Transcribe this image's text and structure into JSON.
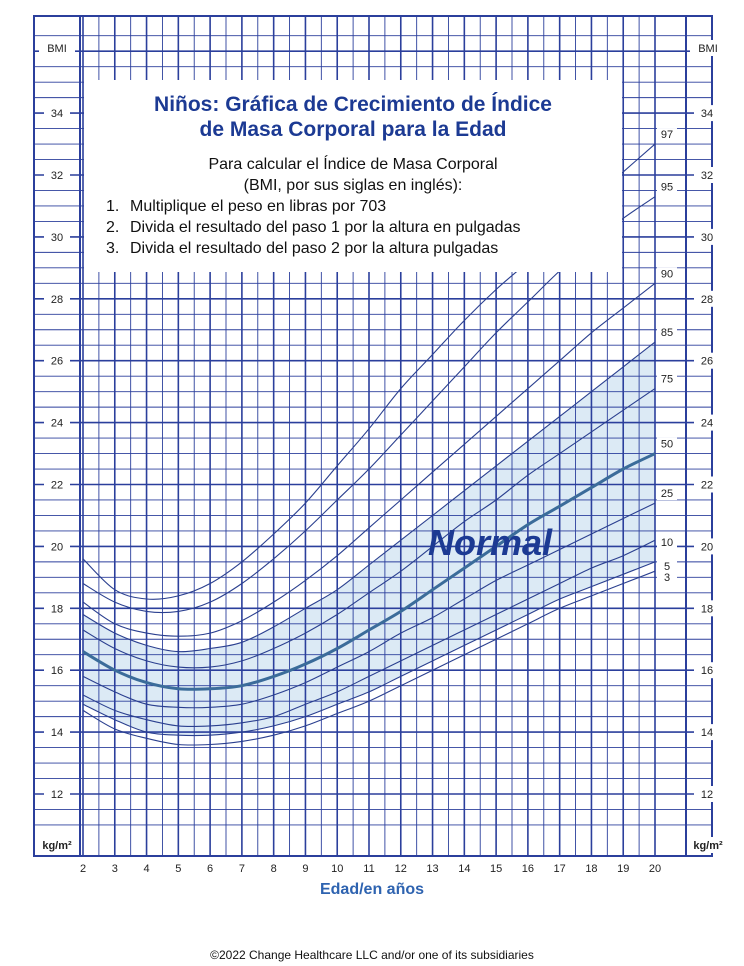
{
  "header": {
    "title": "Niños: Gráfica de Crecimiento de Índice",
    "title_line2": "de Masa Corporal para la Edad",
    "calc_intro_1": "Para calcular el Índice de Masa Corporal",
    "calc_intro_2": "(BMI, por sus siglas en inglés):",
    "steps": [
      {
        "num": "1.",
        "text": "Multiplique el peso en libras por 703"
      },
      {
        "num": "2.",
        "text": "Divida el resultado del paso 1 por la altura en pulgadas"
      },
      {
        "num": "3.",
        "text": "Divida el resultado del paso 2 por la altura pulgadas"
      }
    ]
  },
  "footer": {
    "copyright": "©2022 Change Healthcare LLC and/or one of its subsidiaries"
  },
  "colors": {
    "grid": "#2b3f9c",
    "curve": "#2a3f8f",
    "median": "#3b6c9a",
    "band": "#dceaf5",
    "title": "#1c3a93",
    "axis_label": "#2e63b0"
  },
  "chart_data": {
    "type": "line",
    "x_axis_label": "Edad/en años",
    "y_axis_label": "BMI",
    "y_unit_label": "kg/m²",
    "xlim": [
      2,
      20
    ],
    "ylim": [
      10.8,
      36.5
    ],
    "x_ticks": [
      2,
      3,
      4,
      5,
      6,
      7,
      8,
      9,
      10,
      11,
      12,
      13,
      14,
      15,
      16,
      17,
      18,
      19,
      20
    ],
    "y_ticks": [
      12,
      14,
      16,
      18,
      20,
      22,
      24,
      26,
      28,
      30,
      32,
      34
    ],
    "grid": true,
    "shaded_band": {
      "label": "Normal",
      "from_percentile": "5",
      "to_percentile": "85"
    },
    "ages": [
      2,
      3,
      4,
      5,
      6,
      7,
      8,
      9,
      10,
      11,
      12,
      13,
      14,
      15,
      16,
      17,
      18,
      19,
      20
    ],
    "series": [
      {
        "name": "3",
        "values": [
          14.7,
          14.1,
          13.8,
          13.6,
          13.6,
          13.7,
          13.9,
          14.2,
          14.6,
          15.0,
          15.5,
          16.0,
          16.5,
          17.0,
          17.5,
          18.0,
          18.4,
          18.8,
          19.2
        ]
      },
      {
        "name": "5",
        "values": [
          14.9,
          14.4,
          14.0,
          13.9,
          13.9,
          14.0,
          14.2,
          14.5,
          14.9,
          15.3,
          15.8,
          16.3,
          16.8,
          17.3,
          17.8,
          18.3,
          18.7,
          19.1,
          19.5
        ]
      },
      {
        "name": "10",
        "values": [
          15.2,
          14.7,
          14.4,
          14.2,
          14.2,
          14.3,
          14.5,
          14.9,
          15.3,
          15.8,
          16.3,
          16.8,
          17.3,
          17.8,
          18.3,
          18.8,
          19.3,
          19.7,
          20.2
        ]
      },
      {
        "name": "25",
        "values": [
          15.8,
          15.3,
          14.9,
          14.8,
          14.8,
          14.9,
          15.2,
          15.6,
          16.1,
          16.6,
          17.2,
          17.7,
          18.3,
          18.9,
          19.4,
          19.9,
          20.4,
          20.9,
          21.4
        ]
      },
      {
        "name": "50",
        "values": [
          16.6,
          16.0,
          15.6,
          15.4,
          15.4,
          15.5,
          15.8,
          16.2,
          16.7,
          17.3,
          17.9,
          18.6,
          19.3,
          20.0,
          20.7,
          21.3,
          21.9,
          22.5,
          23.0
        ]
      },
      {
        "name": "75",
        "values": [
          17.3,
          16.7,
          16.3,
          16.1,
          16.1,
          16.3,
          16.7,
          17.2,
          17.8,
          18.5,
          19.2,
          20.0,
          20.8,
          21.5,
          22.3,
          23.0,
          23.7,
          24.4,
          25.1
        ]
      },
      {
        "name": "85",
        "values": [
          17.8,
          17.2,
          16.8,
          16.6,
          16.7,
          16.9,
          17.4,
          18.0,
          18.6,
          19.4,
          20.2,
          21.0,
          21.8,
          22.6,
          23.4,
          24.2,
          25.0,
          25.8,
          26.6
        ]
      },
      {
        "name": "90",
        "values": [
          18.2,
          17.5,
          17.2,
          17.1,
          17.2,
          17.6,
          18.2,
          18.9,
          19.7,
          20.6,
          21.5,
          22.4,
          23.3,
          24.2,
          25.1,
          26.0,
          26.9,
          27.7,
          28.5
        ]
      },
      {
        "name": "95",
        "values": [
          18.8,
          18.2,
          17.9,
          17.9,
          18.2,
          18.8,
          19.6,
          20.5,
          21.5,
          22.5,
          23.6,
          24.7,
          25.8,
          26.9,
          27.9,
          28.9,
          29.8,
          30.6,
          31.3
        ]
      },
      {
        "name": "97",
        "values": [
          19.6,
          18.6,
          18.3,
          18.4,
          18.8,
          19.5,
          20.4,
          21.4,
          22.6,
          23.8,
          25.1,
          26.2,
          27.3,
          28.3,
          29.2,
          30.2,
          31.2,
          32.1,
          33.0
        ]
      }
    ]
  }
}
